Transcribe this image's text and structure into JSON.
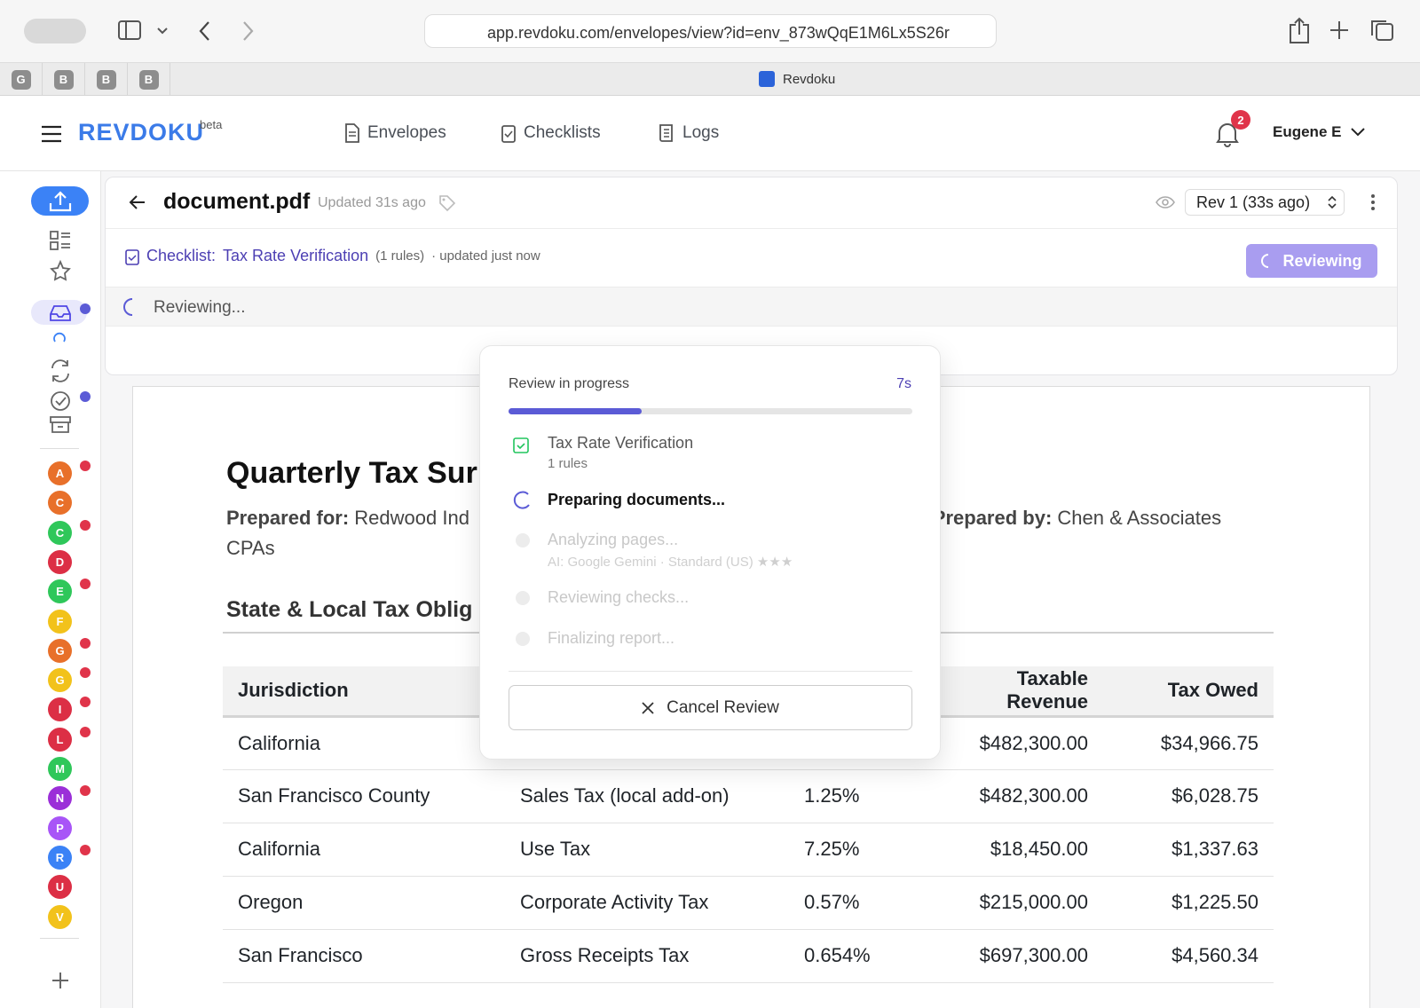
{
  "browser": {
    "url": "app.revdoku.com/envelopes/view?id=env_873wQqE1M6Lx5S26r",
    "tab_groups": [
      "G",
      "B",
      "B",
      "B"
    ],
    "tab_title": "Revdoku"
  },
  "header": {
    "logo": "REVDOKU",
    "badge": "beta",
    "nav": [
      "Envelopes",
      "Checklists",
      "Logs"
    ],
    "notifications": "2",
    "user": "Eugene E"
  },
  "sidebar": {
    "avatars": [
      {
        "letter": "A",
        "color": "#e8702a",
        "dot": true
      },
      {
        "letter": "C",
        "color": "#e8702a",
        "dot": false
      },
      {
        "letter": "C",
        "color": "#2fc75a",
        "dot": true
      },
      {
        "letter": "D",
        "color": "#dc2f45",
        "dot": false
      },
      {
        "letter": "E",
        "color": "#2fc75a",
        "dot": true
      },
      {
        "letter": "F",
        "color": "#f2c21b",
        "dot": false
      },
      {
        "letter": "G",
        "color": "#e8702a",
        "dot": true
      },
      {
        "letter": "G",
        "color": "#f2c21b",
        "dot": true
      },
      {
        "letter": "I",
        "color": "#dc2f45",
        "dot": true
      },
      {
        "letter": "L",
        "color": "#dc2f45",
        "dot": true
      },
      {
        "letter": "M",
        "color": "#2fc75a",
        "dot": false
      },
      {
        "letter": "N",
        "color": "#9b2fd8",
        "dot": true
      },
      {
        "letter": "P",
        "color": "#a855f7",
        "dot": false
      },
      {
        "letter": "R",
        "color": "#3b82f6",
        "dot": true
      },
      {
        "letter": "U",
        "color": "#dc2f45",
        "dot": false
      },
      {
        "letter": "V",
        "color": "#f2c21b",
        "dot": false
      }
    ]
  },
  "document": {
    "filename": "document.pdf",
    "updated": "Updated 31s ago",
    "revision": "Rev 1 (33s ago)",
    "checklist_label": "Checklist:",
    "checklist_name": "Tax Rate Verification",
    "rules": "(1 rules)",
    "checklist_updated": "· updated just now",
    "status_button": "Reviewing",
    "status_line": "Reviewing..."
  },
  "page": {
    "title": "Quarterly Tax Sur",
    "prepared_for_label": "Prepared for:",
    "prepared_for": "Redwood Ind",
    "separator": "|",
    "prepared_by_label": "Prepared by:",
    "prepared_by": "Chen & Associates CPAs",
    "section": "State & Local Tax Oblig",
    "table": {
      "header": [
        "Jurisdiction",
        null,
        null,
        "Taxable Revenue",
        "Tax Owed"
      ],
      "rows": [
        [
          "California",
          null,
          null,
          "$482,300.00",
          "$34,966.75"
        ],
        [
          "San Francisco County",
          "Sales Tax (local add-on)",
          "1.25%",
          "$482,300.00",
          "$6,028.75"
        ],
        [
          "California",
          "Use Tax",
          "7.25%",
          "$18,450.00",
          "$1,337.63"
        ],
        [
          "Oregon",
          "Corporate Activity Tax",
          "0.57%",
          "$215,000.00",
          "$1,225.50"
        ],
        [
          "San Francisco",
          "Gross Receipts Tax",
          "0.654%",
          "$697,300.00",
          "$4,560.34"
        ]
      ]
    }
  },
  "modal": {
    "title": "Review in progress",
    "elapsed": "7s",
    "progress": 33,
    "checklist": {
      "name": "Tax Rate Verification",
      "rules": "1 rules"
    },
    "steps": [
      {
        "label": "Preparing documents...",
        "state": "active"
      },
      {
        "label": "Analyzing pages...",
        "state": "pending",
        "detail": "AI: Google Gemini · Standard (US) ★★★"
      },
      {
        "label": "Reviewing checks...",
        "state": "pending"
      },
      {
        "label": "Finalizing report...",
        "state": "pending"
      }
    ],
    "cancel": "Cancel Review"
  }
}
